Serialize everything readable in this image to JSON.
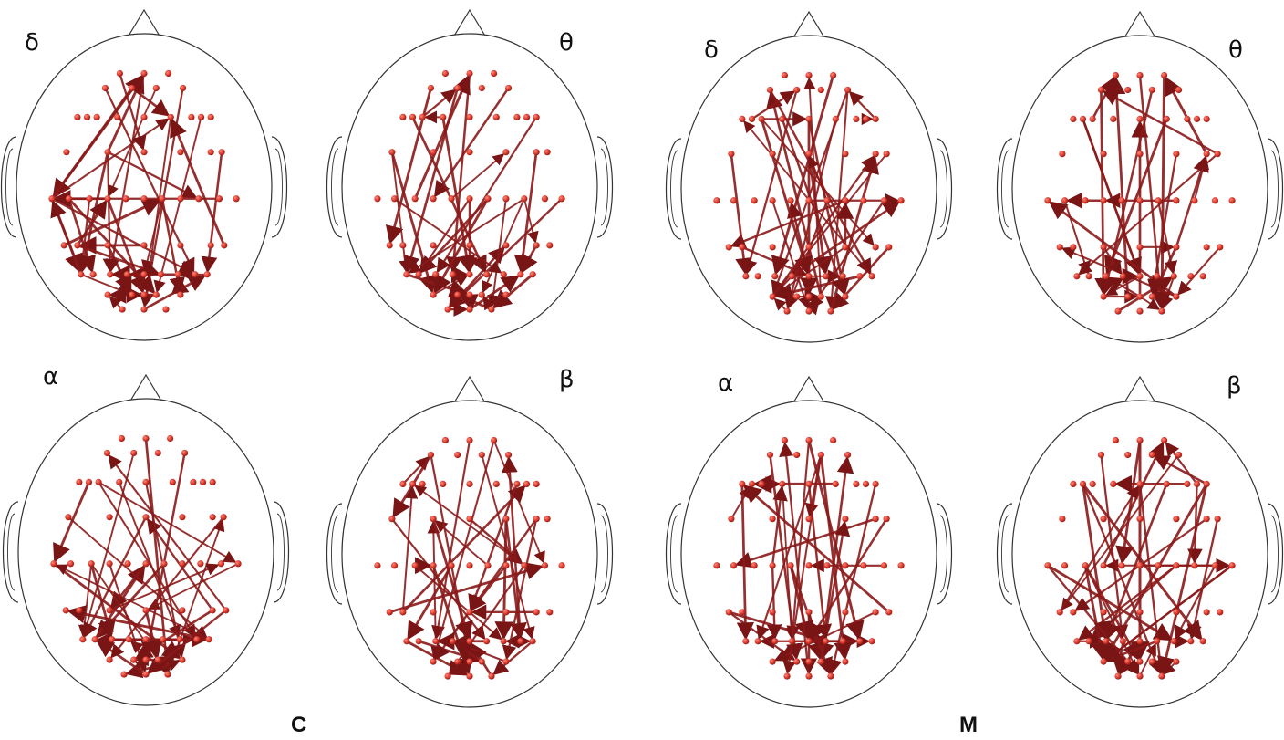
{
  "figure": {
    "groups": [
      {
        "id": "C",
        "label": "C",
        "bands": [
          {
            "id": "delta",
            "symbol": "δ"
          },
          {
            "id": "theta",
            "symbol": "θ"
          },
          {
            "id": "alpha",
            "symbol": "α"
          },
          {
            "id": "beta",
            "symbol": "β"
          }
        ]
      },
      {
        "id": "M",
        "label": "M",
        "bands": [
          {
            "id": "delta",
            "symbol": "δ"
          },
          {
            "id": "theta",
            "symbol": "θ"
          },
          {
            "id": "alpha",
            "symbol": "α"
          },
          {
            "id": "beta",
            "symbol": "β"
          }
        ]
      }
    ],
    "colors": {
      "node": "#d9362b",
      "edge": "#8b1a1a",
      "head_outline": "#333333"
    }
  }
}
